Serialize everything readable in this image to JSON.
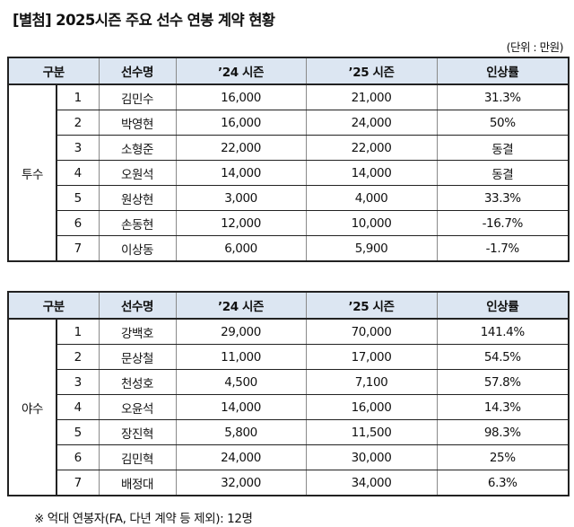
{
  "document": {
    "title": "[별첨] 2025시즌 주요 선수 연봉 계약 현황",
    "unit_label": "(단위 : 만원)",
    "note": "※  억대 연봉자(FA, 다년 계약 등 제외): 12명"
  },
  "columns": {
    "category": "구분",
    "player": "선수명",
    "season24": "’24 시즌",
    "season25": "’25 시즌",
    "raise": "인상률"
  },
  "pitchers": {
    "group_label": "투수",
    "rows": [
      {
        "no": "1",
        "name": "김민수",
        "s24": "16,000",
        "s25": "21,000",
        "raise": "31.3%"
      },
      {
        "no": "2",
        "name": "박영현",
        "s24": "16,000",
        "s25": "24,000",
        "raise": "50%"
      },
      {
        "no": "3",
        "name": "소형준",
        "s24": "22,000",
        "s25": "22,000",
        "raise": "동결"
      },
      {
        "no": "4",
        "name": "오원석",
        "s24": "14,000",
        "s25": "14,000",
        "raise": "동결"
      },
      {
        "no": "5",
        "name": "원상현",
        "s24": "3,000",
        "s25": "4,000",
        "raise": "33.3%"
      },
      {
        "no": "6",
        "name": "손동현",
        "s24": "12,000",
        "s25": "10,000",
        "raise": "-16.7%"
      },
      {
        "no": "7",
        "name": "이상동",
        "s24": "6,000",
        "s25": "5,900",
        "raise": "-1.7%"
      }
    ]
  },
  "fielders": {
    "group_label": "야수",
    "rows": [
      {
        "no": "1",
        "name": "강백호",
        "s24": "29,000",
        "s25": "70,000",
        "raise": "141.4%"
      },
      {
        "no": "2",
        "name": "문상철",
        "s24": "11,000",
        "s25": "17,000",
        "raise": "54.5%"
      },
      {
        "no": "3",
        "name": "천성호",
        "s24": "4,500",
        "s25": "7,100",
        "raise": "57.8%"
      },
      {
        "no": "4",
        "name": "오윤석",
        "s24": "14,000",
        "s25": "16,000",
        "raise": "14.3%"
      },
      {
        "no": "5",
        "name": "장진혁",
        "s24": "5,800",
        "s25": "11,500",
        "raise": "98.3%"
      },
      {
        "no": "6",
        "name": "김민혁",
        "s24": "24,000",
        "s25": "30,000",
        "raise": "25%"
      },
      {
        "no": "7",
        "name": "배정대",
        "s24": "32,000",
        "s25": "34,000",
        "raise": "6.3%"
      }
    ]
  },
  "colors": {
    "header_fill": "#dce6f2",
    "border_dark": "#222222",
    "border_light": "#8a8a8a"
  }
}
